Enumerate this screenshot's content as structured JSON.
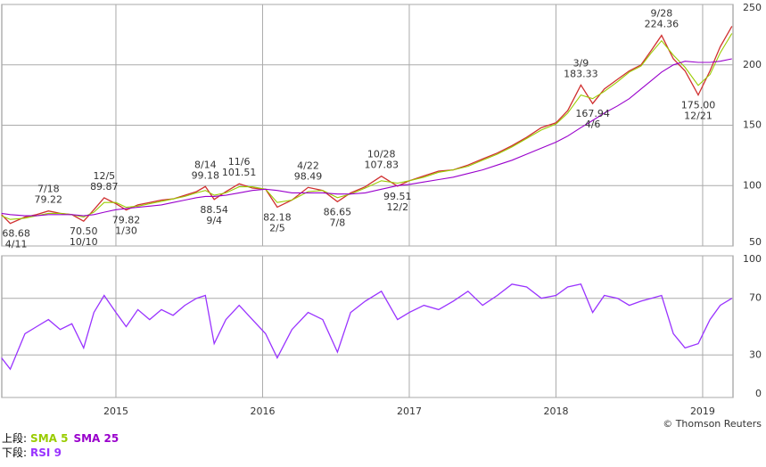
{
  "chart_data": [
    {
      "type": "line",
      "panel_label": "上段:",
      "grid": true,
      "x": [
        2014.22,
        2014.28,
        2014.38,
        2014.46,
        2014.54,
        2014.62,
        2014.7,
        2014.78,
        2014.85,
        2014.92,
        2015.0,
        2015.07,
        2015.15,
        2015.23,
        2015.31,
        2015.39,
        2015.47,
        2015.55,
        2015.61,
        2015.67,
        2015.75,
        2015.84,
        2015.93,
        2016.02,
        2016.1,
        2016.2,
        2016.31,
        2016.41,
        2016.51,
        2016.6,
        2016.7,
        2016.81,
        2016.92,
        2017.0,
        2017.1,
        2017.2,
        2017.3,
        2017.4,
        2017.5,
        2017.6,
        2017.7,
        2017.8,
        2017.9,
        2018.0,
        2018.08,
        2018.17,
        2018.25,
        2018.33,
        2018.42,
        2018.5,
        2018.58,
        2018.65,
        2018.72,
        2018.8,
        2018.88,
        2018.97,
        2019.05,
        2019.12,
        2019.2
      ],
      "series": [
        {
          "color": "#d03030",
          "values": [
            76,
            68.7,
            74,
            76,
            79,
            77,
            76,
            70.5,
            80,
            89.9,
            85,
            79.8,
            84,
            86,
            88,
            89,
            92,
            95,
            99.2,
            88.5,
            95,
            101.5,
            98,
            97,
            82.2,
            88,
            98.5,
            96,
            86.7,
            94,
            99,
            107.8,
            99.5,
            104,
            108,
            112,
            113,
            117,
            122,
            127,
            133,
            140,
            148,
            152,
            162,
            183.3,
            167.9,
            180,
            188,
            195,
            200,
            212,
            224.4,
            205,
            195,
            175,
            195,
            215,
            232
          ]
        },
        {
          "name": "SMA 5",
          "color": "#99cc00",
          "values": [
            75,
            72,
            73,
            75,
            77,
            77,
            76,
            74,
            78,
            86,
            86,
            82,
            83,
            85,
            87,
            89,
            91,
            94,
            96,
            92,
            94,
            99,
            99,
            97,
            86,
            88,
            95,
            96,
            90,
            93,
            98,
            104,
            102,
            104,
            107,
            111,
            113,
            116,
            121,
            126,
            132,
            139,
            146,
            151,
            160,
            175,
            172,
            178,
            186,
            194,
            199,
            210,
            220,
            208,
            198,
            183,
            192,
            210,
            226
          ]
        },
        {
          "name": "SMA 25",
          "color": "#9900cc",
          "values": [
            77,
            76,
            75,
            75,
            76,
            76,
            76,
            75,
            76,
            78,
            80,
            81,
            82,
            83,
            84,
            86,
            88,
            90,
            91,
            91,
            92,
            94,
            96,
            97,
            96,
            94,
            94,
            94,
            93,
            93,
            94,
            97,
            100,
            101,
            103,
            105,
            107,
            110,
            113,
            117,
            121,
            126,
            131,
            136,
            141,
            148,
            154,
            160,
            166,
            172,
            180,
            187,
            194,
            200,
            203,
            202,
            202,
            203,
            205
          ]
        }
      ],
      "xlim": [
        2014.222,
        2019.207
      ],
      "xticks": [
        2015,
        2016,
        2017,
        2018,
        2019
      ],
      "ylim": [
        50,
        250
      ],
      "yticks": [
        50,
        100,
        150,
        200,
        250
      ],
      "annotations": [
        {
          "x": 2014.32,
          "value": 68.68,
          "date": "4/11",
          "position": "below"
        },
        {
          "x": 2014.54,
          "value": 79.22,
          "date": "7/18",
          "position": "above"
        },
        {
          "x": 2014.78,
          "value": {
            "value": 70.5,
            "label": "70.50"
          },
          "date": "10/10",
          "position": "below"
        },
        {
          "x": 2014.92,
          "value": 89.87,
          "date": "12/5",
          "position": "above"
        },
        {
          "x": 2015.07,
          "value": 79.82,
          "date": "1/30",
          "position": "below"
        },
        {
          "x": 2015.61,
          "value": 99.18,
          "date": "8/14",
          "position": "above"
        },
        {
          "x": 2015.67,
          "value": 88.54,
          "date": "9/4",
          "position": "below"
        },
        {
          "x": 2015.84,
          "value": 101.51,
          "date": "11/6",
          "position": "above"
        },
        {
          "x": 2016.1,
          "value": 82.18,
          "date": "2/5",
          "position": "below"
        },
        {
          "x": 2016.31,
          "value": 98.49,
          "date": "4/22",
          "position": "above"
        },
        {
          "x": 2016.51,
          "value": 86.65,
          "date": "7/8",
          "position": "below"
        },
        {
          "x": 2016.81,
          "value": 107.83,
          "date": "10/28",
          "position": "above"
        },
        {
          "x": 2016.92,
          "value": 99.51,
          "date": "12/2",
          "position": "below"
        },
        {
          "x": 2018.17,
          "value": 183.33,
          "date": "3/9",
          "position": "above"
        },
        {
          "x": 2018.25,
          "value": 167.94,
          "date": "4/6",
          "position": "below"
        },
        {
          "x": 2018.72,
          "value": 224.36,
          "date": "9/28",
          "position": "above"
        },
        {
          "x": 2018.97,
          "value": {
            "value": 175,
            "label": "175.00"
          },
          "date": "12/21",
          "position": "below"
        }
      ]
    },
    {
      "type": "line",
      "panel_label": "下段:",
      "grid": true,
      "credit": "© Thomson Reuters",
      "x": [
        2014.22,
        2014.28,
        2014.38,
        2014.46,
        2014.54,
        2014.62,
        2014.7,
        2014.78,
        2014.85,
        2014.92,
        2015.0,
        2015.07,
        2015.15,
        2015.23,
        2015.31,
        2015.39,
        2015.47,
        2015.55,
        2015.61,
        2015.67,
        2015.75,
        2015.84,
        2015.93,
        2016.02,
        2016.1,
        2016.2,
        2016.31,
        2016.41,
        2016.51,
        2016.6,
        2016.7,
        2016.81,
        2016.92,
        2017.0,
        2017.1,
        2017.2,
        2017.3,
        2017.4,
        2017.5,
        2017.6,
        2017.7,
        2017.8,
        2017.9,
        2018.0,
        2018.08,
        2018.17,
        2018.25,
        2018.33,
        2018.42,
        2018.5,
        2018.58,
        2018.65,
        2018.72,
        2018.8,
        2018.88,
        2018.97,
        2019.05,
        2019.12,
        2019.2
      ],
      "series": [
        {
          "name": "RSI 9",
          "color": "#9933ff",
          "values": [
            28,
            20,
            45,
            50,
            55,
            48,
            52,
            35,
            60,
            72,
            60,
            50,
            62,
            55,
            62,
            58,
            65,
            70,
            72,
            38,
            55,
            65,
            55,
            45,
            28,
            48,
            60,
            55,
            32,
            60,
            68,
            75,
            55,
            60,
            65,
            62,
            68,
            75,
            65,
            72,
            80,
            78,
            70,
            72,
            78,
            80,
            60,
            72,
            70,
            65,
            68,
            70,
            72,
            45,
            35,
            38,
            55,
            65,
            70
          ]
        }
      ],
      "xlim": [
        2014.222,
        2019.207
      ],
      "xticks": [
        2015,
        2016,
        2017,
        2018,
        2019
      ],
      "ylim": [
        0,
        100
      ],
      "yticks": [
        0,
        30,
        70,
        100
      ]
    }
  ]
}
